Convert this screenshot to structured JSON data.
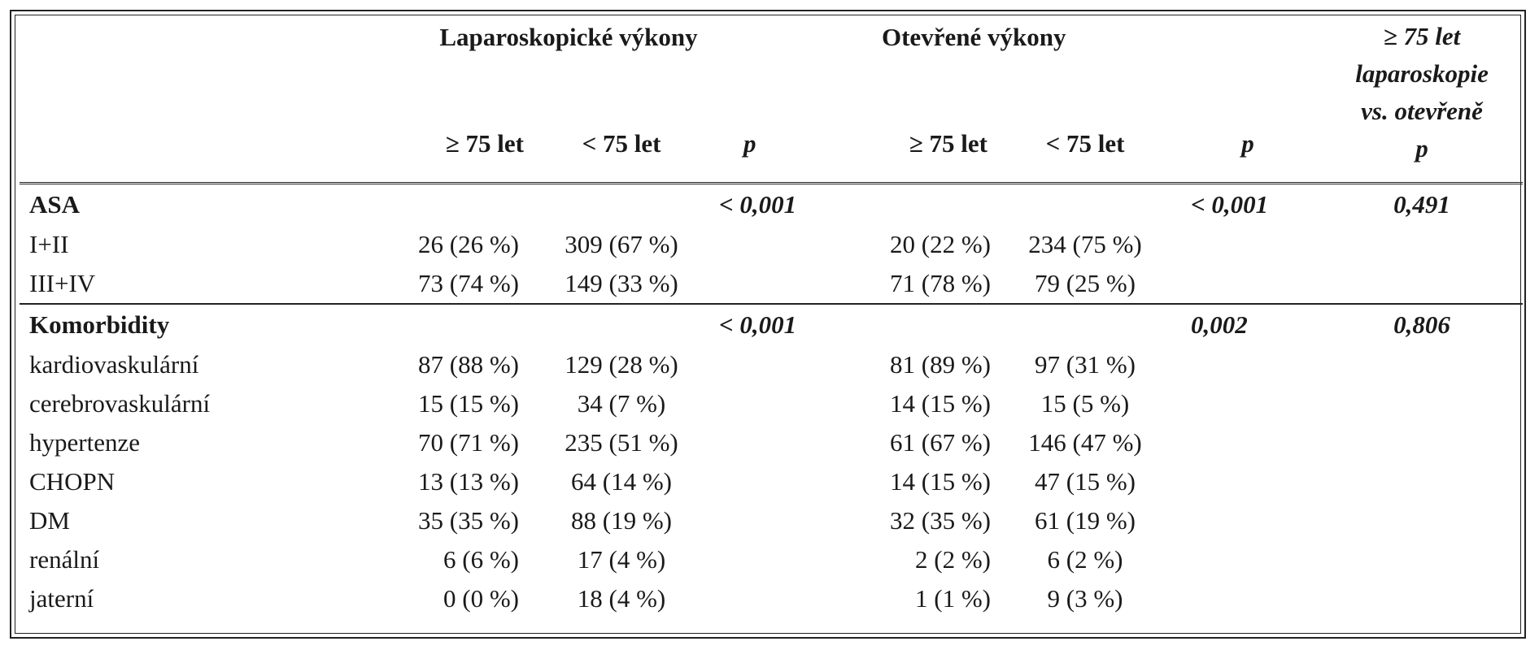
{
  "header": {
    "group_lap": "Laparoskopické výkony",
    "group_open": "Otevřené výkony",
    "last_col": [
      "≥ 75 let",
      "laparoskopie",
      "vs. otevřeně",
      "p"
    ],
    "sub": {
      "lap_ge75": "≥ 75 let",
      "lap_lt75": "< 75 let",
      "lap_p": "p",
      "open_ge75": "≥ 75 let",
      "open_lt75": "< 75 let",
      "open_p": "p"
    }
  },
  "sections": [
    {
      "title": "ASA",
      "p_lap": "< 0,001",
      "p_open": "< 0,001",
      "p_cmp": "0,491",
      "rows": [
        {
          "label": "I+II",
          "lap_ge75": "26 (26 %)",
          "lap_lt75": "309 (67 %)",
          "open_ge75": "20 (22 %)",
          "open_lt75": "234 (75 %)"
        },
        {
          "label": "III+IV",
          "lap_ge75": "73 (74 %)",
          "lap_lt75": "149 (33 %)",
          "open_ge75": "71 (78 %)",
          "open_lt75": "79 (25 %)"
        }
      ]
    },
    {
      "title": "Komorbidity",
      "p_lap": "< 0,001",
      "p_open": "0,002",
      "p_cmp": "0,806",
      "rows": [
        {
          "label": "kardiovaskulární",
          "lap_ge75": "87 (88 %)",
          "lap_lt75": "129 (28 %)",
          "open_ge75": "81 (89 %)",
          "open_lt75": "97 (31 %)"
        },
        {
          "label": "cerebrovaskulární",
          "lap_ge75": "15 (15 %)",
          "lap_lt75": "34 (7 %)",
          "open_ge75": "14 (15 %)",
          "open_lt75": "15 (5 %)"
        },
        {
          "label": "hypertenze",
          "lap_ge75": "70 (71 %)",
          "lap_lt75": "235 (51 %)",
          "open_ge75": "61 (67 %)",
          "open_lt75": "146 (47 %)"
        },
        {
          "label": "CHOPN",
          "lap_ge75": "13 (13 %)",
          "lap_lt75": "64 (14 %)",
          "open_ge75": "14 (15 %)",
          "open_lt75": "47 (15 %)"
        },
        {
          "label": "DM",
          "lap_ge75": "35 (35 %)",
          "lap_lt75": "88 (19 %)",
          "open_ge75": "32 (35 %)",
          "open_lt75": "61 (19 %)"
        },
        {
          "label": "renální",
          "lap_ge75": "6 (6 %)",
          "lap_lt75": "17 (4 %)",
          "open_ge75": "2 (2 %)",
          "open_lt75": "6 (2 %)"
        },
        {
          "label": "jaterní",
          "lap_ge75": "0 (0 %)",
          "lap_lt75": "18 (4 %)",
          "open_ge75": "1 (1 %)",
          "open_lt75": "9 (3 %)"
        }
      ]
    }
  ]
}
